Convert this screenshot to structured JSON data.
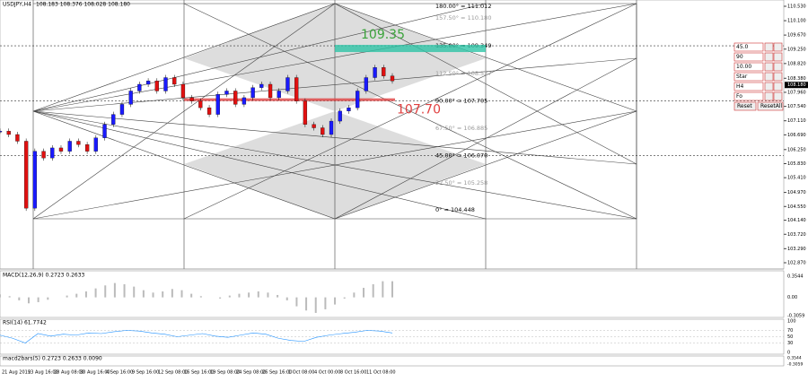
{
  "header": {
    "symbol": "USDJPY,H4",
    "quote": "108.183 108.376 108.028 108.180"
  },
  "price_axis": {
    "ylim": [
      102.87,
      110.53
    ],
    "ticks": [
      {
        "value": 110.53,
        "label": "110.530"
      },
      {
        "value": 110.1,
        "label": "110.100"
      },
      {
        "value": 109.67,
        "label": "109.670"
      },
      {
        "value": 109.25,
        "label": "109.250"
      },
      {
        "value": 108.82,
        "label": "108.820"
      },
      {
        "value": 108.38,
        "label": "108.380"
      },
      {
        "value": 107.96,
        "label": "107.960"
      },
      {
        "value": 107.54,
        "label": "107.540"
      },
      {
        "value": 107.11,
        "label": "107.110"
      },
      {
        "value": 106.69,
        "label": "106.690"
      },
      {
        "value": 106.25,
        "label": "106.250"
      },
      {
        "value": 105.83,
        "label": "105.830"
      },
      {
        "value": 105.41,
        "label": "105.410"
      },
      {
        "value": 104.97,
        "label": "104.970"
      },
      {
        "value": 104.55,
        "label": "104.550"
      },
      {
        "value": 104.14,
        "label": "104.140"
      },
      {
        "value": 103.72,
        "label": "103.720"
      },
      {
        "value": 103.29,
        "label": "103.290"
      },
      {
        "value": 102.87,
        "label": "102.870"
      }
    ],
    "current": {
      "value": 108.18,
      "label": "108.180"
    }
  },
  "gann_levels": [
    {
      "value": 111.012,
      "label": "180.00° = 111.012"
    },
    {
      "value": 110.18,
      "label": "157.50° = 110.180"
    },
    {
      "value": 109.349,
      "label": "135.00° = 109.349"
    },
    {
      "value": 108.527,
      "label": "112.50° = 108.527"
    },
    {
      "value": 107.705,
      "label": "90.00° = 107.705"
    },
    {
      "value": 106.885,
      "label": "67.50° = 106.885"
    },
    {
      "value": 106.07,
      "label": "45.00° = 106.070"
    },
    {
      "value": 105.258,
      "label": "22.50° = 105.258"
    },
    {
      "value": 104.448,
      "label": "0° = 104.448"
    }
  ],
  "highlights": [
    {
      "value": 109.35,
      "label": "109.35"
    },
    {
      "value": 107.7,
      "label": "107.70"
    }
  ],
  "closes": [
    106.8,
    106.7,
    106.5,
    104.5,
    106.2,
    106.0,
    106.3,
    106.2,
    106.5,
    106.4,
    106.2,
    106.6,
    107.0,
    107.3,
    107.6,
    108.0,
    108.2,
    108.3,
    108.0,
    108.4,
    108.2,
    107.8,
    107.7,
    107.5,
    107.3,
    107.9,
    108.0,
    107.6,
    107.8,
    108.1,
    108.2,
    107.8,
    108.0,
    108.4,
    107.7,
    107.0,
    106.9,
    106.7,
    107.1,
    107.4,
    107.5,
    108.0,
    108.4,
    108.7,
    108.45,
    108.3
  ],
  "panel": {
    "inputs": [
      "45.0",
      "90",
      "10.00",
      "Star",
      "H4",
      "Fo"
    ],
    "buttons": [
      "Reset",
      "ResetAll"
    ]
  },
  "macd": {
    "title": "MACD(12,26,9) 0.2723 0.2633",
    "ylim": [
      -0.3059,
      0.3544
    ],
    "ticks": [
      {
        "value": 0.3544,
        "label": "0.3544"
      },
      {
        "value": 0,
        "label": "0.00"
      },
      {
        "value": -0.3059,
        "label": "-0.3059"
      }
    ],
    "values": [
      0.05,
      0.02,
      -0.05,
      -0.1,
      -0.08,
      -0.04,
      0.0,
      0.03,
      0.06,
      0.1,
      0.15,
      0.2,
      0.24,
      0.22,
      0.18,
      0.12,
      0.08,
      0.1,
      0.14,
      0.12,
      0.06,
      0.02,
      0.0,
      -0.02,
      0.03,
      0.06,
      0.08,
      0.1,
      0.08,
      0.04,
      -0.05,
      -0.15,
      -0.22,
      -0.26,
      -0.2,
      -0.12,
      -0.02,
      0.08,
      0.16,
      0.22,
      0.27,
      0.27
    ]
  },
  "rsi": {
    "title": "RSI(14) 61.7742",
    "ylim": [
      0,
      100
    ],
    "ticks": [
      100,
      70,
      50,
      30,
      0
    ],
    "values": [
      55,
      45,
      30,
      60,
      52,
      58,
      55,
      62,
      60,
      66,
      70,
      68,
      62,
      58,
      50,
      55,
      60,
      52,
      48,
      55,
      62,
      58,
      45,
      38,
      35,
      48,
      55,
      60,
      64,
      70,
      68,
      62
    ]
  },
  "macd2": {
    "title": "macd2bars(5) 0.2723 0.2633 0.0090",
    "ticks": [
      {
        "value": 0.3544,
        "label": "0.3544"
      },
      {
        "value": -0.3059,
        "label": "-0.3059"
      }
    ]
  },
  "dates": [
    "21 Aug 2019",
    "23 Aug 16:00",
    "28 Aug 08:00",
    "30 Aug 16:00",
    "4 Sep 16:00",
    "9 Sep 16:00",
    "12 Sep 08:00",
    "16 Sep 16:00",
    "19 Sep 08:00",
    "24 Sep 08:00",
    "26 Sep 16:00",
    "1 Oct 08:00",
    "4 Oct 00:00",
    "8 Oct 16:00",
    "11 Oct 08:00"
  ]
}
